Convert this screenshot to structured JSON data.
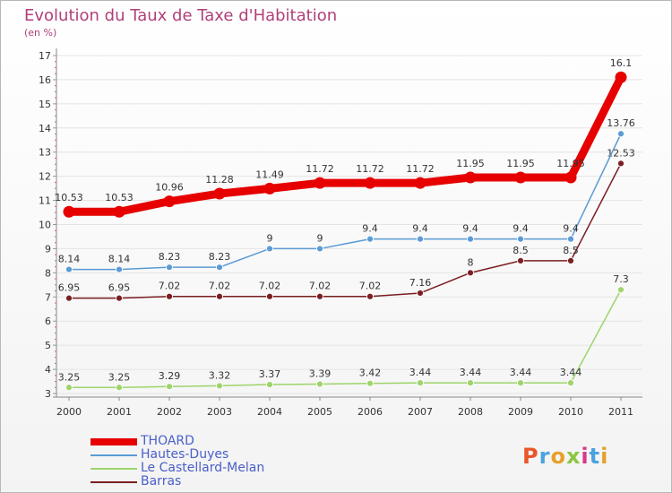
{
  "header": {
    "title": "Evolution du Taux de Taxe d'Habitation",
    "subtitle": "(en %)"
  },
  "logo": {
    "text": "Proxiti",
    "colors": [
      "#e8562a",
      "#4aa3df",
      "#e8a02a",
      "#8cc63f",
      "#d63a8a",
      "#4aa3df",
      "#e8a02a"
    ]
  },
  "chart_data": {
    "type": "line",
    "title": "Evolution du Taux de Taxe d'Habitation",
    "subtitle": "(en %)",
    "xlabel": "",
    "ylabel": "",
    "x": [
      "2000",
      "2001",
      "2002",
      "2003",
      "2004",
      "2005",
      "2006",
      "2007",
      "2008",
      "2009",
      "2010",
      "2011"
    ],
    "ylim": [
      3,
      17
    ],
    "yticks": [
      3,
      4,
      5,
      6,
      7,
      8,
      9,
      10,
      11,
      12,
      13,
      14,
      15,
      16,
      17
    ],
    "grid": "horizontal",
    "legend": "bottom-left",
    "series": [
      {
        "name": "THOARD",
        "color": "#e60000",
        "values": [
          10.53,
          10.53,
          10.96,
          11.28,
          11.49,
          11.72,
          11.72,
          11.72,
          11.95,
          11.95,
          11.95,
          16.1
        ],
        "labels": [
          "10.53",
          "10.53",
          "10.96",
          "11.28",
          "11.49",
          "11.72",
          "11.72",
          "11.72",
          "11.95",
          "11.95",
          "11.95",
          "16.1"
        ]
      },
      {
        "name": "Hautes-Duyes",
        "color": "#5b9bd5",
        "values": [
          8.14,
          8.14,
          8.23,
          8.23,
          9,
          9,
          9.4,
          9.4,
          9.4,
          9.4,
          9.4,
          13.76
        ],
        "labels": [
          "8.14",
          "8.14",
          "8.23",
          "8.23",
          "9",
          "9",
          "9.4",
          "9.4",
          "9.4",
          "9.4",
          "9.4",
          "13.76"
        ]
      },
      {
        "name": "Le Castellard-Melan",
        "color": "#9ed46b",
        "values": [
          3.25,
          3.25,
          3.29,
          3.32,
          3.37,
          3.39,
          3.42,
          3.44,
          3.44,
          3.44,
          3.44,
          7.3
        ],
        "labels": [
          "3.25",
          "3.25",
          "3.29",
          "3.32",
          "3.37",
          "3.39",
          "3.42",
          "3.44",
          "3.44",
          "3.44",
          "3.44",
          "7.3"
        ]
      },
      {
        "name": "Barras",
        "color": "#7a1f22",
        "values": [
          6.95,
          6.95,
          7.02,
          7.02,
          7.02,
          7.02,
          7.02,
          7.16,
          8,
          8.5,
          8.5,
          12.53
        ],
        "labels": [
          "6.95",
          "6.95",
          "7.02",
          "7.02",
          "7.02",
          "7.02",
          "7.02",
          "7.16",
          "8",
          "8.5",
          "8.5",
          "12.53"
        ]
      }
    ]
  }
}
